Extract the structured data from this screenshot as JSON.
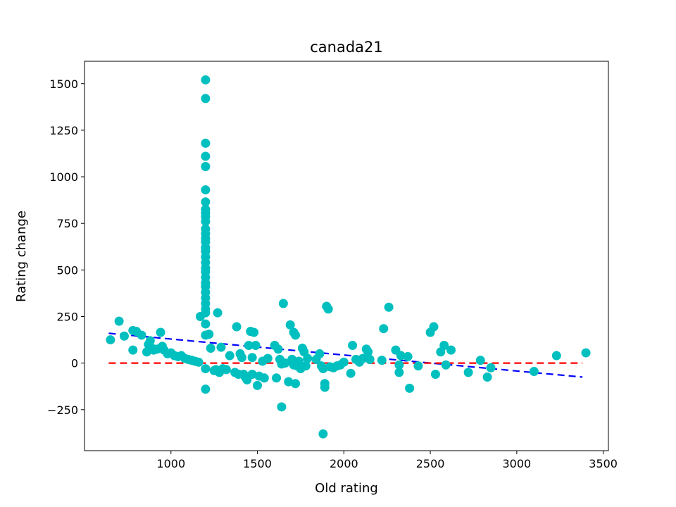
{
  "chart_data": {
    "type": "scatter",
    "title": "canada21",
    "xlabel": "Old rating",
    "ylabel": "Rating change",
    "xlim": [
      500,
      3530
    ],
    "ylim": [
      -470,
      1620
    ],
    "xticks": [
      1000,
      1500,
      2000,
      2500,
      3000,
      3500
    ],
    "yticks": [
      -250,
      0,
      250,
      500,
      750,
      1000,
      1250,
      1500
    ],
    "xtick_labels": [
      "1000",
      "1500",
      "2000",
      "2500",
      "3000",
      "3500"
    ],
    "ytick_labels": [
      "−250",
      "0",
      "250",
      "500",
      "750",
      "1000",
      "1250",
      "1500"
    ],
    "grid": false,
    "point_color": "#00bfbf",
    "series": [
      {
        "values": [
          [
            650,
            125
          ],
          [
            700,
            225
          ],
          [
            730,
            145
          ],
          [
            780,
            70
          ],
          [
            780,
            175
          ],
          [
            800,
            170
          ],
          [
            830,
            150
          ],
          [
            860,
            60
          ],
          [
            870,
            100
          ],
          [
            880,
            120
          ],
          [
            890,
            80
          ],
          [
            900,
            70
          ],
          [
            920,
            75
          ],
          [
            940,
            165
          ],
          [
            950,
            90
          ],
          [
            960,
            70
          ],
          [
            980,
            50
          ],
          [
            1000,
            55
          ],
          [
            1020,
            40
          ],
          [
            1040,
            35
          ],
          [
            1060,
            40
          ],
          [
            1080,
            25
          ],
          [
            1100,
            20
          ],
          [
            1120,
            15
          ],
          [
            1140,
            10
          ],
          [
            1160,
            5
          ],
          [
            1170,
            250
          ],
          [
            1200,
            1520
          ],
          [
            1200,
            1420
          ],
          [
            1200,
            1180
          ],
          [
            1200,
            1110
          ],
          [
            1200,
            1055
          ],
          [
            1200,
            930
          ],
          [
            1200,
            865
          ],
          [
            1200,
            825
          ],
          [
            1200,
            805
          ],
          [
            1200,
            785
          ],
          [
            1200,
            760
          ],
          [
            1200,
            720
          ],
          [
            1200,
            695
          ],
          [
            1200,
            670
          ],
          [
            1200,
            650
          ],
          [
            1200,
            620
          ],
          [
            1200,
            600
          ],
          [
            1200,
            570
          ],
          [
            1200,
            540
          ],
          [
            1200,
            510
          ],
          [
            1200,
            490
          ],
          [
            1200,
            460
          ],
          [
            1200,
            430
          ],
          [
            1200,
            410
          ],
          [
            1200,
            380
          ],
          [
            1200,
            350
          ],
          [
            1200,
            320
          ],
          [
            1200,
            290
          ],
          [
            1200,
            270
          ],
          [
            1200,
            210
          ],
          [
            1200,
            150
          ],
          [
            1200,
            -30
          ],
          [
            1200,
            -140
          ],
          [
            1220,
            155
          ],
          [
            1230,
            80
          ],
          [
            1250,
            -40
          ],
          [
            1260,
            -35
          ],
          [
            1270,
            270
          ],
          [
            1280,
            -50
          ],
          [
            1290,
            85
          ],
          [
            1300,
            -30
          ],
          [
            1320,
            -35
          ],
          [
            1340,
            40
          ],
          [
            1370,
            -50
          ],
          [
            1380,
            195
          ],
          [
            1390,
            -60
          ],
          [
            1400,
            50
          ],
          [
            1410,
            30
          ],
          [
            1420,
            -60
          ],
          [
            1430,
            -75
          ],
          [
            1440,
            -90
          ],
          [
            1450,
            95
          ],
          [
            1460,
            170
          ],
          [
            1470,
            -60
          ],
          [
            1470,
            30
          ],
          [
            1480,
            165
          ],
          [
            1490,
            95
          ],
          [
            1500,
            -120
          ],
          [
            1510,
            -70
          ],
          [
            1530,
            10
          ],
          [
            1540,
            -80
          ],
          [
            1560,
            25
          ],
          [
            1600,
            95
          ],
          [
            1610,
            -80
          ],
          [
            1620,
            75
          ],
          [
            1630,
            20
          ],
          [
            1640,
            -235
          ],
          [
            1640,
            -5
          ],
          [
            1650,
            320
          ],
          [
            1660,
            0
          ],
          [
            1680,
            -100
          ],
          [
            1690,
            205
          ],
          [
            1700,
            20
          ],
          [
            1710,
            165
          ],
          [
            1710,
            -10
          ],
          [
            1720,
            150
          ],
          [
            1720,
            -110
          ],
          [
            1730,
            -15
          ],
          [
            1740,
            10
          ],
          [
            1750,
            -30
          ],
          [
            1760,
            80
          ],
          [
            1770,
            60
          ],
          [
            1780,
            -15
          ],
          [
            1790,
            25
          ],
          [
            1840,
            20
          ],
          [
            1860,
            50
          ],
          [
            1870,
            -15
          ],
          [
            1880,
            -380
          ],
          [
            1880,
            -30
          ],
          [
            1890,
            -130
          ],
          [
            1890,
            -110
          ],
          [
            1900,
            305
          ],
          [
            1910,
            290
          ],
          [
            1920,
            -20
          ],
          [
            1940,
            -25
          ],
          [
            1960,
            -15
          ],
          [
            1980,
            -10
          ],
          [
            2000,
            5
          ],
          [
            2040,
            -55
          ],
          [
            2050,
            95
          ],
          [
            2070,
            20
          ],
          [
            2090,
            5
          ],
          [
            2110,
            25
          ],
          [
            2130,
            75
          ],
          [
            2140,
            60
          ],
          [
            2150,
            20
          ],
          [
            2220,
            15
          ],
          [
            2230,
            185
          ],
          [
            2260,
            300
          ],
          [
            2300,
            70
          ],
          [
            2320,
            -50
          ],
          [
            2320,
            -10
          ],
          [
            2330,
            40
          ],
          [
            2370,
            35
          ],
          [
            2380,
            -135
          ],
          [
            2430,
            -15
          ],
          [
            2500,
            165
          ],
          [
            2520,
            195
          ],
          [
            2530,
            -60
          ],
          [
            2560,
            60
          ],
          [
            2580,
            95
          ],
          [
            2590,
            -10
          ],
          [
            2620,
            70
          ],
          [
            2720,
            -50
          ],
          [
            2790,
            15
          ],
          [
            2830,
            -75
          ],
          [
            2850,
            -25
          ],
          [
            3100,
            -45
          ],
          [
            3230,
            40
          ],
          [
            3400,
            55
          ]
        ]
      }
    ],
    "lines": [
      {
        "kind": "trend",
        "color": "#0000ff",
        "x": [
          640,
          3380
        ],
        "y": [
          160,
          -75
        ]
      },
      {
        "kind": "zero",
        "color": "#ff0000",
        "x": [
          640,
          3380
        ],
        "y": [
          0,
          0
        ]
      }
    ]
  }
}
